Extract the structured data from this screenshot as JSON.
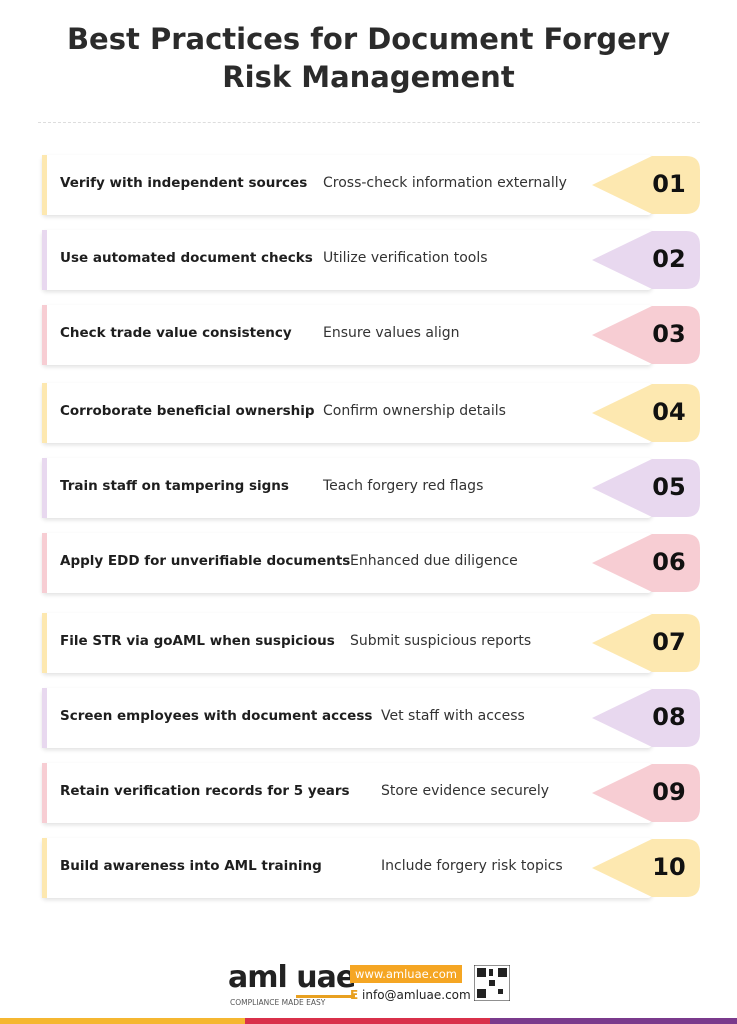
{
  "header": {
    "title_lines": [
      "Best Practices for Document Forgery",
      "Risk Management"
    ]
  },
  "rows": [
    {
      "action": "Verify with independent sources",
      "description": "Cross-check information externally",
      "number": "01"
    },
    {
      "action": "Use automated document checks",
      "description": "Utilize verification tools",
      "number": "02"
    },
    {
      "action": "Check trade value consistency",
      "description": "Ensure values align",
      "number": "03"
    },
    {
      "action": "Corroborate beneficial ownership",
      "description": "Confirm ownership details",
      "number": "04"
    },
    {
      "action": "Train staff on tampering signs",
      "description": "Teach forgery red flags",
      "number": "05"
    },
    {
      "action": "Apply EDD for unverifiable documents",
      "description": "Enhanced due diligence",
      "number": "06"
    },
    {
      "action": "File STR via goAML when suspicious",
      "description": "Submit suspicious reports",
      "number": "07"
    },
    {
      "action": "Screen employees with document access",
      "description": "Vet staff with access",
      "number": "08"
    },
    {
      "action": "Retain verification records for 5 years",
      "description": "Store evidence securely",
      "number": "09"
    },
    {
      "action": "Build awareness into AML training",
      "description": "Include forgery risk topics",
      "number": "10"
    }
  ],
  "footer": {
    "logo_left": "aml",
    "logo_right": "uae",
    "tagline": "COMPLIANCE MADE EASY",
    "website": "www.amluae.com",
    "email_label": "E",
    "email": "info@amluae.com"
  }
}
